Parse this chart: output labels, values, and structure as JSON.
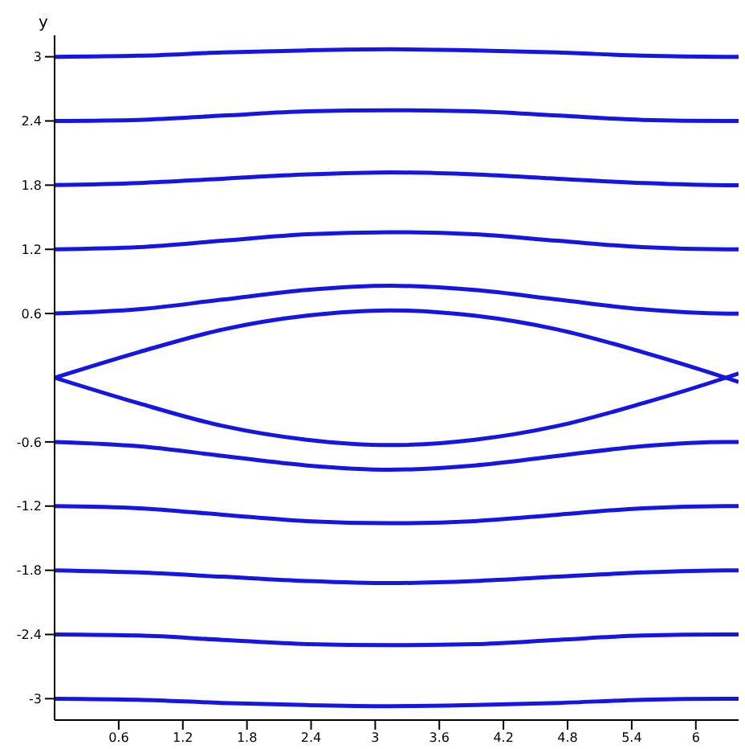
{
  "chart_data": {
    "type": "line",
    "ylabel": "y",
    "x": [
      0,
      0.79,
      1.57,
      2.36,
      3.14,
      3.93,
      4.71,
      5.5,
      6.28,
      6.4
    ],
    "xlim": [
      0,
      6.4
    ],
    "ylim": [
      -3.2,
      3.2
    ],
    "xticks": [
      0.6,
      1.2,
      1.8,
      2.4,
      3,
      3.6,
      4.2,
      4.8,
      5.4,
      6
    ],
    "yticks": [
      -3,
      -2.4,
      -1.8,
      -1.2,
      -0.6,
      0.6,
      1.2,
      1.8,
      2.4,
      3
    ],
    "grid": false,
    "marker": "none",
    "line_style": "solid",
    "series": [
      {
        "color": "#1515e6",
        "values": [
          3,
          3.01,
          3.04,
          3.06,
          3.07,
          3.06,
          3.04,
          3.01,
          3,
          3
        ]
      },
      {
        "color": "#1515e6",
        "values": [
          2.4,
          2.41,
          2.45,
          2.49,
          2.5,
          2.49,
          2.45,
          2.41,
          2.4,
          2.4
        ]
      },
      {
        "color": "#1515e6",
        "values": [
          1.8,
          1.82,
          1.86,
          1.9,
          1.92,
          1.9,
          1.86,
          1.82,
          1.8,
          1.8
        ]
      },
      {
        "color": "#1515e6",
        "values": [
          1.2,
          1.22,
          1.28,
          1.34,
          1.36,
          1.34,
          1.28,
          1.22,
          1.2,
          1.2
        ]
      },
      {
        "color": "#1515e6",
        "values": [
          0.6,
          0.64,
          0.73,
          0.82,
          0.86,
          0.82,
          0.73,
          0.64,
          0.6,
          0.6
        ]
      },
      {
        "color": "#1515e6",
        "values": [
          0,
          0.24,
          0.45,
          0.58,
          0.63,
          0.58,
          0.45,
          0.24,
          0,
          -0.04
        ]
      },
      {
        "color": "#1515e6",
        "values": [
          0,
          -0.24,
          -0.45,
          -0.58,
          -0.63,
          -0.58,
          -0.45,
          -0.24,
          0,
          0.04
        ]
      },
      {
        "color": "#1515e6",
        "values": [
          -0.6,
          -0.64,
          -0.73,
          -0.82,
          -0.86,
          -0.82,
          -0.73,
          -0.64,
          -0.6,
          -0.6
        ]
      },
      {
        "color": "#1515e6",
        "values": [
          -1.2,
          -1.22,
          -1.28,
          -1.34,
          -1.36,
          -1.34,
          -1.28,
          -1.22,
          -1.2,
          -1.2
        ]
      },
      {
        "color": "#1515e6",
        "values": [
          -1.8,
          -1.82,
          -1.86,
          -1.9,
          -1.92,
          -1.9,
          -1.86,
          -1.82,
          -1.8,
          -1.8
        ]
      },
      {
        "color": "#1515e6",
        "values": [
          -2.4,
          -2.41,
          -2.45,
          -2.49,
          -2.5,
          -2.49,
          -2.45,
          -2.41,
          -2.4,
          -2.4
        ]
      },
      {
        "color": "#1515e6",
        "values": [
          -3,
          -3.01,
          -3.04,
          -3.06,
          -3.07,
          -3.06,
          -3.04,
          -3.01,
          -3,
          -3
        ]
      }
    ]
  }
}
